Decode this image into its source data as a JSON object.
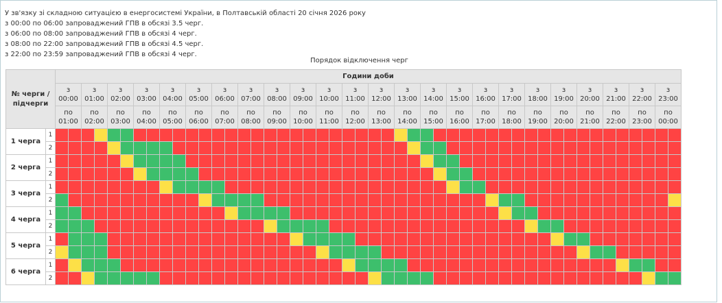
{
  "notice": {
    "intro_prefix": "У зв'язку зі складною ситуацією в енергосистемі України, в Полтавській області ",
    "date": "20 січня 2026 року",
    "lines": [
      {
        "from": "з 00:00 по 06:00",
        "text": " запроваджений ГПВ в обсязі ",
        "volume": "3.5 черг."
      },
      {
        "from": "з 06:00 по 08:00",
        "text": " запроваджений ГПВ в обсязі ",
        "volume": "4 черг."
      },
      {
        "from": "з 08:00 по 22:00",
        "text": " запроваджений ГПВ в обсязі ",
        "volume": "4.5 черг."
      },
      {
        "from": "з 22:00 по 23:59",
        "text": " запроваджений ГПВ в обсязі ",
        "volume": "4 черг."
      }
    ]
  },
  "caption": "Порядок відключення черг",
  "table": {
    "queue_header": "№ черги / підчерги",
    "hours_header": "Години доби",
    "from_prefix": "з",
    "to_prefix": "по",
    "from_times": [
      "00:00",
      "01:00",
      "02:00",
      "03:00",
      "04:00",
      "05:00",
      "06:00",
      "07:00",
      "08:00",
      "09:00",
      "10:00",
      "11:00",
      "12:00",
      "13:00",
      "14:00",
      "15:00",
      "16:00",
      "17:00",
      "18:00",
      "19:00",
      "20:00",
      "21:00",
      "22:00",
      "23:00"
    ],
    "to_times": [
      "01:00",
      "02:00",
      "03:00",
      "04:00",
      "05:00",
      "06:00",
      "07:00",
      "08:00",
      "09:00",
      "10:00",
      "11:00",
      "12:00",
      "13:00",
      "14:00",
      "15:00",
      "16:00",
      "17:00",
      "18:00",
      "19:00",
      "20:00",
      "21:00",
      "22:00",
      "23:00",
      "00:00"
    ],
    "queues": [
      {
        "label": "1 черга",
        "subs": [
          {
            "label": "1",
            "slots": "rrryggrrrrrrrrrrrrrrrrrrrryggrrrrrrrrrrrrrrrrrrr"
          },
          {
            "label": "2",
            "slots": "rrrryggggrrrrrrrrrrrrrrrrrryggrrrrrrrrrrrrrrrrrrr"
          }
        ]
      },
      {
        "label": "2 черга",
        "subs": [
          {
            "label": "1",
            "slots": "rrrrryggggrrrrrrrrrrrrrrrrrryggrrrrrrrrrrrrrrrrrr"
          },
          {
            "label": "2",
            "slots": "rrrrrryggggrrrrrrrrrrrrrrrrrryggrrrrrrrrrrrrrrrrr"
          }
        ]
      },
      {
        "label": "3 черга",
        "subs": [
          {
            "label": "1",
            "slots": "rrrrrrrryggggrrrrrrrrrrrrrrrrryggrrrrrrrrrrrrrrr"
          },
          {
            "label": "2",
            "slots": "grrrrrrrrrryggggrrrrrrrrrrrrrrrrryggrrrrrrrrrrry"
          }
        ]
      },
      {
        "label": "4 черга",
        "subs": [
          {
            "label": "1",
            "slots": "ggrrrrrrrrrrryggggrrrrrrrrrrrrrrrryggrrrrrrrrrrr"
          },
          {
            "label": "2",
            "slots": "gggrrrrrrrrrrrrryggggrrrrrrrrrrrrrrryggrrrrrrrrr"
          }
        ]
      },
      {
        "label": "5 черга",
        "subs": [
          {
            "label": "1",
            "slots": "rgggrrrrrrrrrrrrrryggggrrrrrrrrrrrrrrryggrrrrrrr"
          },
          {
            "label": "2",
            "slots": "ygggrrrrrrrrrrrrrrrryggggrrrrrrrrrrrrrrryggrrrrr"
          }
        ]
      },
      {
        "label": "6 черга",
        "subs": [
          {
            "label": "1",
            "slots": "rygggrrrrrrrrrrrrrrrrryggggrrrrrrrrrrrrrrrryggrrr"
          },
          {
            "label": "2",
            "slots": "rrygggggrrrrrrrrrrrrrrrryggggrrrrrrrrrrrrrrrrygg"
          }
        ]
      }
    ]
  },
  "colors": {
    "off": "#ff4343",
    "on": "#3dbf6c",
    "maybe": "#fde047"
  }
}
